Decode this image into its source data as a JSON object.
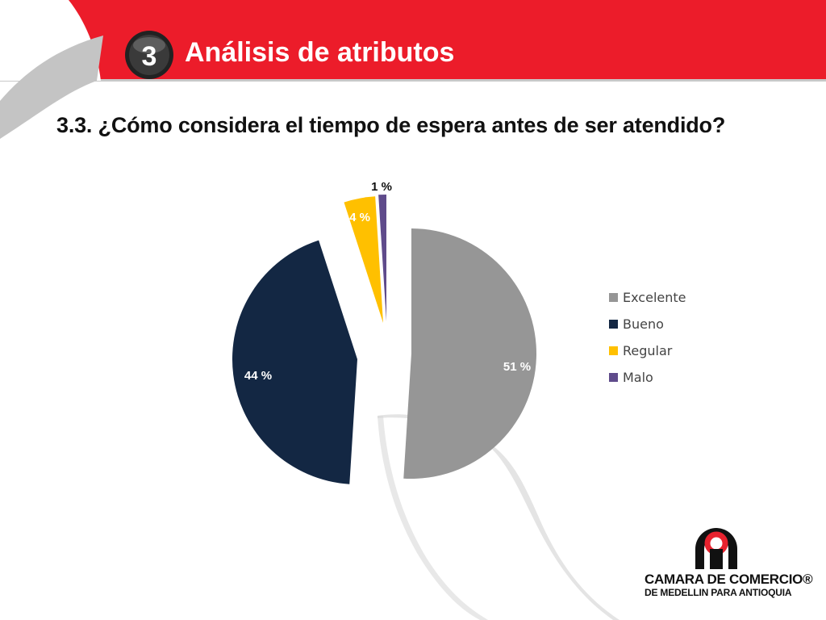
{
  "header": {
    "section_number": "3",
    "title": "Análisis de atributos"
  },
  "question": "3.3. ¿Cómo considera el  tiempo de espera antes de ser atendido?",
  "colors": {
    "header_red": "#ec1c2a",
    "excelente": "#969696",
    "bueno": "#132743",
    "regular": "#ffc000",
    "malo": "#5f4b8b"
  },
  "chart_data": {
    "type": "pie",
    "title": "3.3. ¿Cómo considera el  tiempo de espera antes de ser atendido?",
    "categories": [
      "Excelente",
      "Bueno",
      "Regular",
      "Malo"
    ],
    "values": [
      51,
      44,
      4,
      1
    ],
    "labels": [
      "51 %",
      "44 %",
      "4 %",
      "1 %"
    ],
    "exploded": true,
    "legend_position": "right"
  },
  "logo": {
    "line1": "CAMARA DE COMERCIO®",
    "line2": "DE MEDELLIN PARA ANTIOQUIA"
  }
}
